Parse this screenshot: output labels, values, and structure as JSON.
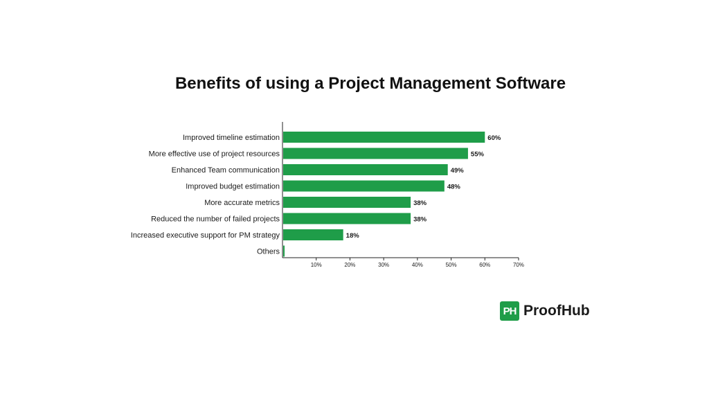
{
  "chart_data": {
    "type": "bar",
    "orientation": "horizontal",
    "title": "Benefits of using a Project Management Software",
    "categories": [
      "Improved timeline estimation",
      "More effective use of project resources",
      "Enhanced Team communication",
      "Improved budget estimation",
      "More accurate metrics",
      "Reduced the number of failed projects",
      "Increased executive support for PM strategy",
      "Others"
    ],
    "values": [
      60,
      55,
      49,
      48,
      38,
      38,
      18,
      0.5
    ],
    "value_labels": [
      "60%",
      "55%",
      "49%",
      "48%",
      "38%",
      "38%",
      "18%",
      ""
    ],
    "xlim": [
      0,
      70
    ],
    "x_ticks": [
      10,
      20,
      30,
      40,
      50,
      60,
      70
    ],
    "x_tick_labels": [
      "10%",
      "20%",
      "30%",
      "40%",
      "50%",
      "60%",
      "70%"
    ],
    "xlabel": "",
    "ylabel": "",
    "grid": false,
    "colors": {
      "bar": "#1f9d49",
      "axis": "#222222"
    }
  },
  "brand": {
    "mark": "PH",
    "name": "ProofHub",
    "color": "#1f9d49"
  }
}
